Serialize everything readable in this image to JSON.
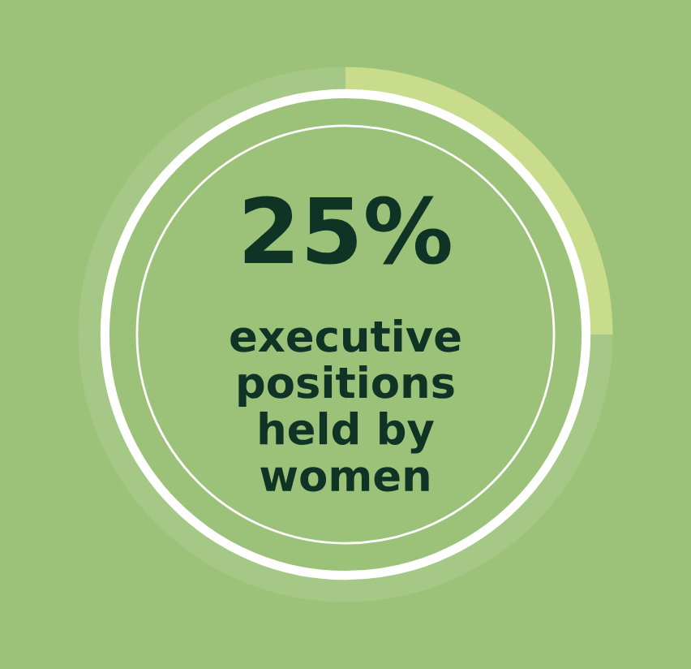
{
  "chart_data": {
    "type": "donut",
    "categories": [
      null,
      null
    ],
    "annotations": [
      "executive positions held by women"
    ],
    "values": [
      25,
      75
    ],
    "colors": [
      "#c8dc8c",
      "#a6c886"
    ],
    "value_labels": [
      "25%",
      null
    ]
  }
}
